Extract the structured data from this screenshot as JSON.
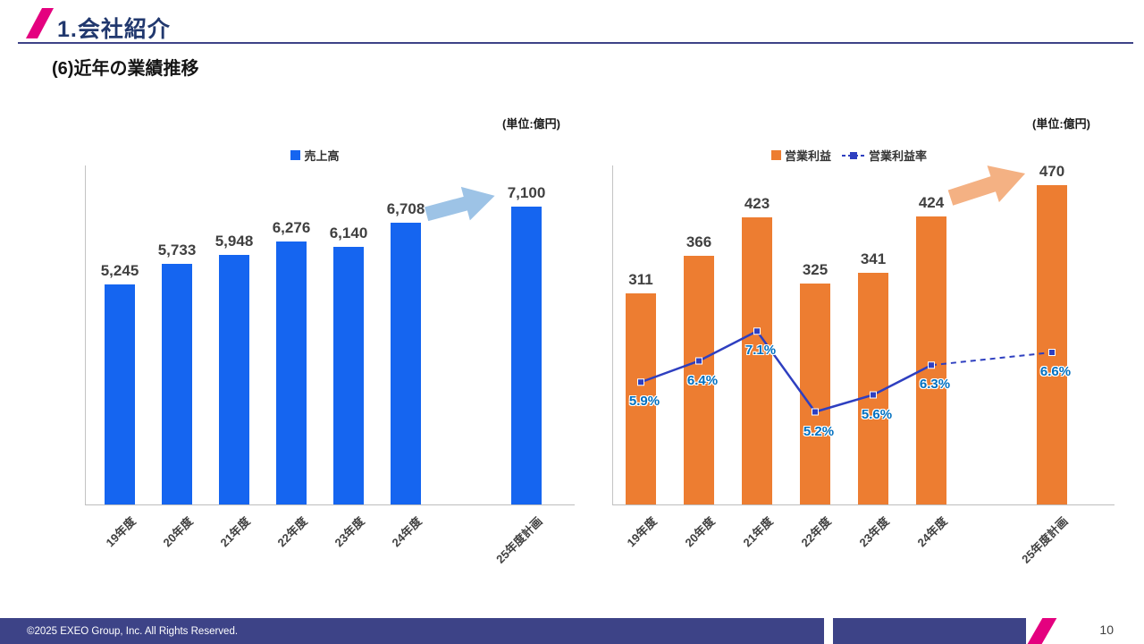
{
  "header": {
    "title": "1.会社紹介",
    "subtitle": "(6)近年の業績推移"
  },
  "footer": {
    "copyright": "©2025 EXEO Group, Inc. All Rights Reserved.",
    "page_number": "10"
  },
  "colors": {
    "accent_pink": "#e4017f",
    "title_navy": "#21386e",
    "rule_navy": "#3d4387",
    "footer_navy": "#3d4387",
    "bar_blue": "#1565f0",
    "bar_orange": "#ed7d31",
    "line_blue": "#2e3fc0",
    "pct_label_blue": "#0070c0",
    "value_label_gray": "#404040",
    "arrow_blue": "#9dc3e6",
    "arrow_orange": "#f4b183"
  },
  "chart_data": [
    {
      "type": "bar",
      "unit_label": "(単位:億円)",
      "legend": [
        {
          "label": "売上高",
          "color": "#1565f0",
          "marker": "square"
        }
      ],
      "categories": [
        "19年度",
        "20年度",
        "21年度",
        "22年度",
        "23年度",
        "24年度",
        "25年度計画"
      ],
      "values": [
        5245,
        5733,
        5948,
        6276,
        6140,
        6708,
        7100
      ],
      "value_labels": [
        "5,245",
        "5,733",
        "5,948",
        "6,276",
        "6,140",
        "6,708",
        "7,100"
      ],
      "bar_color": "#1565f0",
      "ylim": [
        0,
        8100
      ],
      "grid": false,
      "gap_before_last_category": true
    },
    {
      "type": "bar+line",
      "unit_label": "(単位:億円)",
      "legend": [
        {
          "label": "営業利益",
          "color": "#ed7d31",
          "marker": "square"
        },
        {
          "label": "営業利益率",
          "color": "#2e3fc0",
          "marker": "dashed-line-square"
        }
      ],
      "categories": [
        "19年度",
        "20年度",
        "21年度",
        "22年度",
        "23年度",
        "24年度",
        "25年度計画"
      ],
      "series": [
        {
          "name": "営業利益",
          "type": "bar",
          "color": "#ed7d31",
          "values": [
            311,
            366,
            423,
            325,
            341,
            424,
            470
          ],
          "value_labels": [
            "311",
            "366",
            "423",
            "325",
            "341",
            "424",
            "470"
          ],
          "ylim": [
            0,
            500
          ]
        },
        {
          "name": "営業利益率",
          "type": "line",
          "color": "#2e3fc0",
          "label_color": "#0070c0",
          "values": [
            5.9,
            6.4,
            7.1,
            5.2,
            5.6,
            6.3,
            6.6
          ],
          "value_labels": [
            "5.9%",
            "6.4%",
            "7.1%",
            "5.2%",
            "5.6%",
            "6.3%",
            "6.6%"
          ],
          "ylim": [
            3,
            11
          ],
          "last_segment_dashed": true
        }
      ],
      "grid": false,
      "gap_before_last_category": true
    }
  ]
}
